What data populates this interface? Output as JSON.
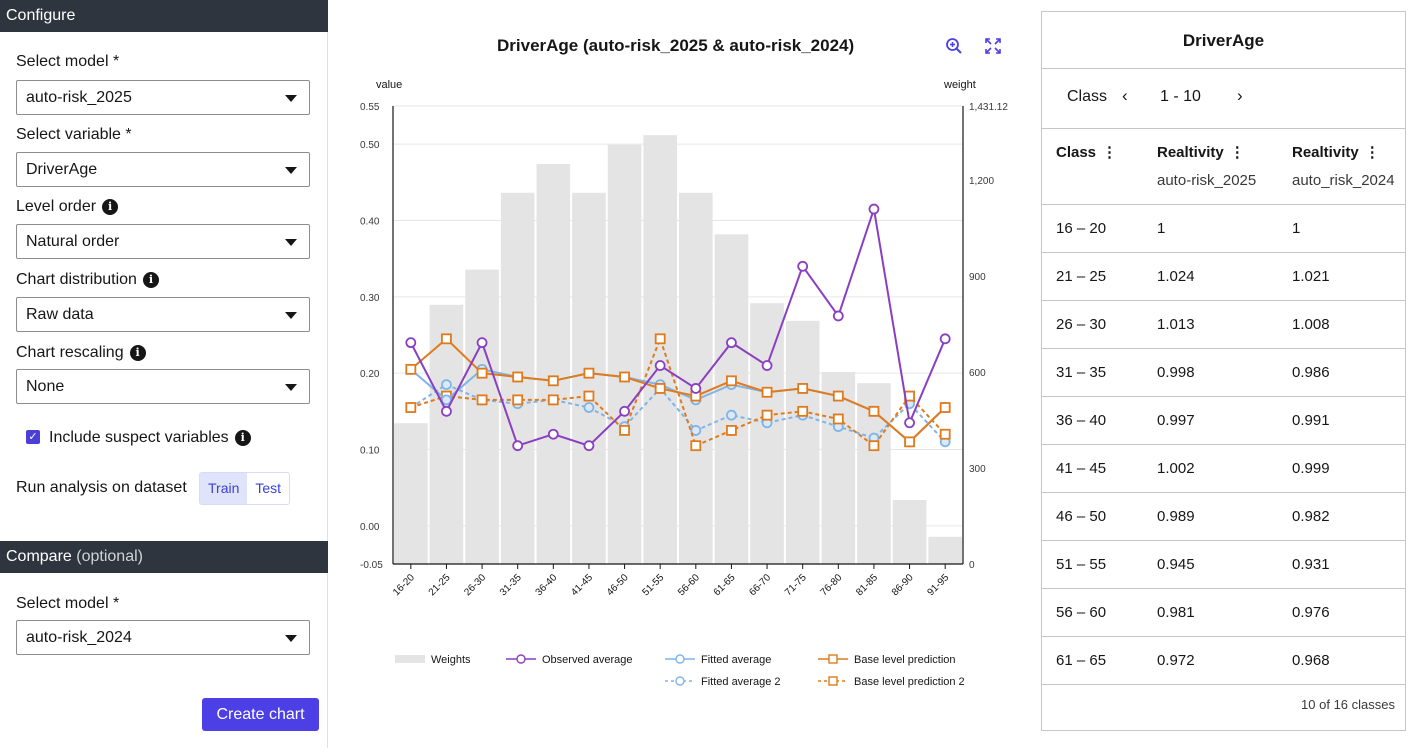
{
  "configure": {
    "header": "Configure",
    "select_model_label": "Select model *",
    "select_model_value": "auto-risk_2025",
    "select_variable_label": "Select variable *",
    "select_variable_value": "DriverAge",
    "level_order_label": "Level order",
    "level_order_value": "Natural order",
    "chart_distribution_label": "Chart distribution",
    "chart_distribution_value": "Raw data",
    "chart_rescaling_label": "Chart rescaling",
    "chart_rescaling_value": "None",
    "include_suspect_label": "Include suspect variables",
    "include_suspect_checked": true,
    "run_analysis_label": "Run analysis on dataset",
    "dataset_options": [
      "Train",
      "Test"
    ],
    "dataset_selected": "Train"
  },
  "compare": {
    "header": "Compare",
    "header_suffix": "(optional)",
    "select_model_label": "Select model *",
    "select_model_value": "auto-risk_2024",
    "create_button": "Create chart"
  },
  "chart_data": {
    "type": "bar+line",
    "title": "DriverAge (auto-risk_2025 & auto-risk_2024)",
    "ylabel_left": "value",
    "ylabel_right": "weight",
    "ylim_left": [
      -0.05,
      0.55
    ],
    "left_ticks": [
      "-0.05",
      "0.00",
      "0.10",
      "0.20",
      "0.30",
      "0.40",
      "0.50",
      "0.55"
    ],
    "left_tick_values": [
      -0.05,
      0.0,
      0.1,
      0.2,
      0.3,
      0.4,
      0.5,
      0.55
    ],
    "ylim_right": [
      0,
      1431.12
    ],
    "right_ticks": [
      "0",
      "300",
      "600",
      "900",
      "1,200",
      "1,431.12"
    ],
    "right_tick_values": [
      0,
      300,
      600,
      900,
      1200,
      1431.12
    ],
    "categories": [
      "16-20",
      "21-25",
      "26-30",
      "31-35",
      "36-40",
      "41-45",
      "46-50",
      "51-55",
      "56-60",
      "61-65",
      "66-70",
      "71-75",
      "76-80",
      "81-85",
      "86-90",
      "91-95"
    ],
    "weights": [
      440,
      810,
      920,
      1160,
      1250,
      1160,
      1310,
      1340,
      1160,
      1030,
      815,
      760,
      600,
      565,
      200,
      85
    ],
    "series": [
      {
        "name": "Observed average",
        "color": "#8a3fc1",
        "style": "solid",
        "marker": "circle",
        "values": [
          0.24,
          0.15,
          0.24,
          0.105,
          0.12,
          0.105,
          0.15,
          0.21,
          0.18,
          0.24,
          0.21,
          0.34,
          0.275,
          0.415,
          0.135,
          0.245
        ]
      },
      {
        "name": "Fitted average",
        "color": "#7fb4e8",
        "style": "solid",
        "marker": "circle",
        "values": [
          0.205,
          0.165,
          0.205,
          0.195,
          0.19,
          0.2,
          0.195,
          0.185,
          0.165,
          0.185,
          0.175,
          0.18,
          0.17,
          0.15,
          0.11,
          0.155
        ]
      },
      {
        "name": "Fitted average 2",
        "color": "#7fb4e8",
        "style": "dashed",
        "marker": "circle",
        "values": [
          0.155,
          0.185,
          0.165,
          0.16,
          0.165,
          0.155,
          0.13,
          0.18,
          0.125,
          0.145,
          0.135,
          0.145,
          0.13,
          0.115,
          0.16,
          0.11
        ]
      },
      {
        "name": "Base level prediction",
        "color": "#e07a1a",
        "style": "solid",
        "marker": "square",
        "values": [
          0.205,
          0.245,
          0.2,
          0.195,
          0.19,
          0.2,
          0.195,
          0.18,
          0.17,
          0.19,
          0.175,
          0.18,
          0.17,
          0.15,
          0.11,
          0.155
        ]
      },
      {
        "name": "Base level prediction 2",
        "color": "#e07a1a",
        "style": "dashed",
        "marker": "square",
        "values": [
          0.155,
          0.17,
          0.165,
          0.165,
          0.165,
          0.17,
          0.125,
          0.245,
          0.105,
          0.125,
          0.145,
          0.15,
          0.14,
          0.105,
          0.17,
          0.12
        ]
      }
    ],
    "legend": [
      "Weights",
      "Observed average",
      "Fitted average",
      "Base level prediction",
      "Fitted average 2",
      "Base level prediction 2"
    ],
    "colors": {
      "weights": "#e4e4e4",
      "grid": "#e6e6e6"
    }
  },
  "chart_tools": {
    "zoom_icon": "zoom-in-icon",
    "expand_icon": "expand-icon"
  },
  "table": {
    "title": "DriverAge",
    "pager_label": "Class",
    "pager_range": "1 - 10",
    "columns": [
      {
        "head": "Class",
        "sub": ""
      },
      {
        "head": "Realtivity",
        "sub": "auto-risk_2025"
      },
      {
        "head": "Realtivity",
        "sub": "auto_risk_2024"
      }
    ],
    "rows": [
      [
        "16 – 20",
        "1",
        "1"
      ],
      [
        "21 – 25",
        "1.024",
        "1.021"
      ],
      [
        "26 – 30",
        "1.013",
        "1.008"
      ],
      [
        "31 – 35",
        "0.998",
        "0.986"
      ],
      [
        "36 – 40",
        "0.997",
        "0.991"
      ],
      [
        "41 – 45",
        "1.002",
        "0.999"
      ],
      [
        "46 – 50",
        "0.989",
        "0.982"
      ],
      [
        "51 – 55",
        "0.945",
        "0.931"
      ],
      [
        "56 – 60",
        "0.981",
        "0.976"
      ],
      [
        "61 – 65",
        "0.972",
        "0.968"
      ]
    ],
    "footer": "10 of 16 classes"
  }
}
